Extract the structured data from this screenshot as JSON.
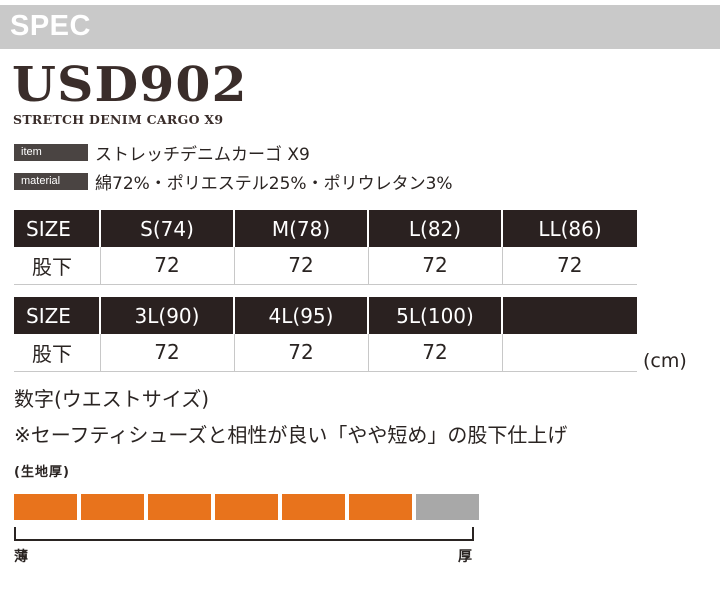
{
  "header": {
    "section_label": "SPEC"
  },
  "product": {
    "model": "USD902",
    "subtitle": "STRETCH DENIM CARGO X9",
    "item_tag": "item",
    "item_value": "ストレッチデニムカーゴ X9",
    "material_tag": "material",
    "material_value": "綿72%・ポリエステル25%・ポリウレタン3%"
  },
  "size_table_1": {
    "head": [
      "SIZE",
      "S(74)",
      "M(78)",
      "L(82)",
      "LL(86)"
    ],
    "row": [
      "股下",
      "72",
      "72",
      "72",
      "72"
    ]
  },
  "size_table_2": {
    "head": [
      "SIZE",
      "3L(90)",
      "4L(95)",
      "5L(100)",
      ""
    ],
    "row": [
      "股下",
      "72",
      "72",
      "72",
      ""
    ]
  },
  "unit": "(cm)",
  "notes": {
    "line1": "数字(ウエストサイズ)",
    "line2": "※セーフティシューズと相性が良い「やや短め」の股下仕上げ"
  },
  "thickness": {
    "label": "(生地厚)",
    "segments_total": 7,
    "segments_filled": 6,
    "filled_color": "#e8731c",
    "empty_color": "#a8a8a8",
    "thin_label": "薄",
    "thick_label": "厚"
  }
}
